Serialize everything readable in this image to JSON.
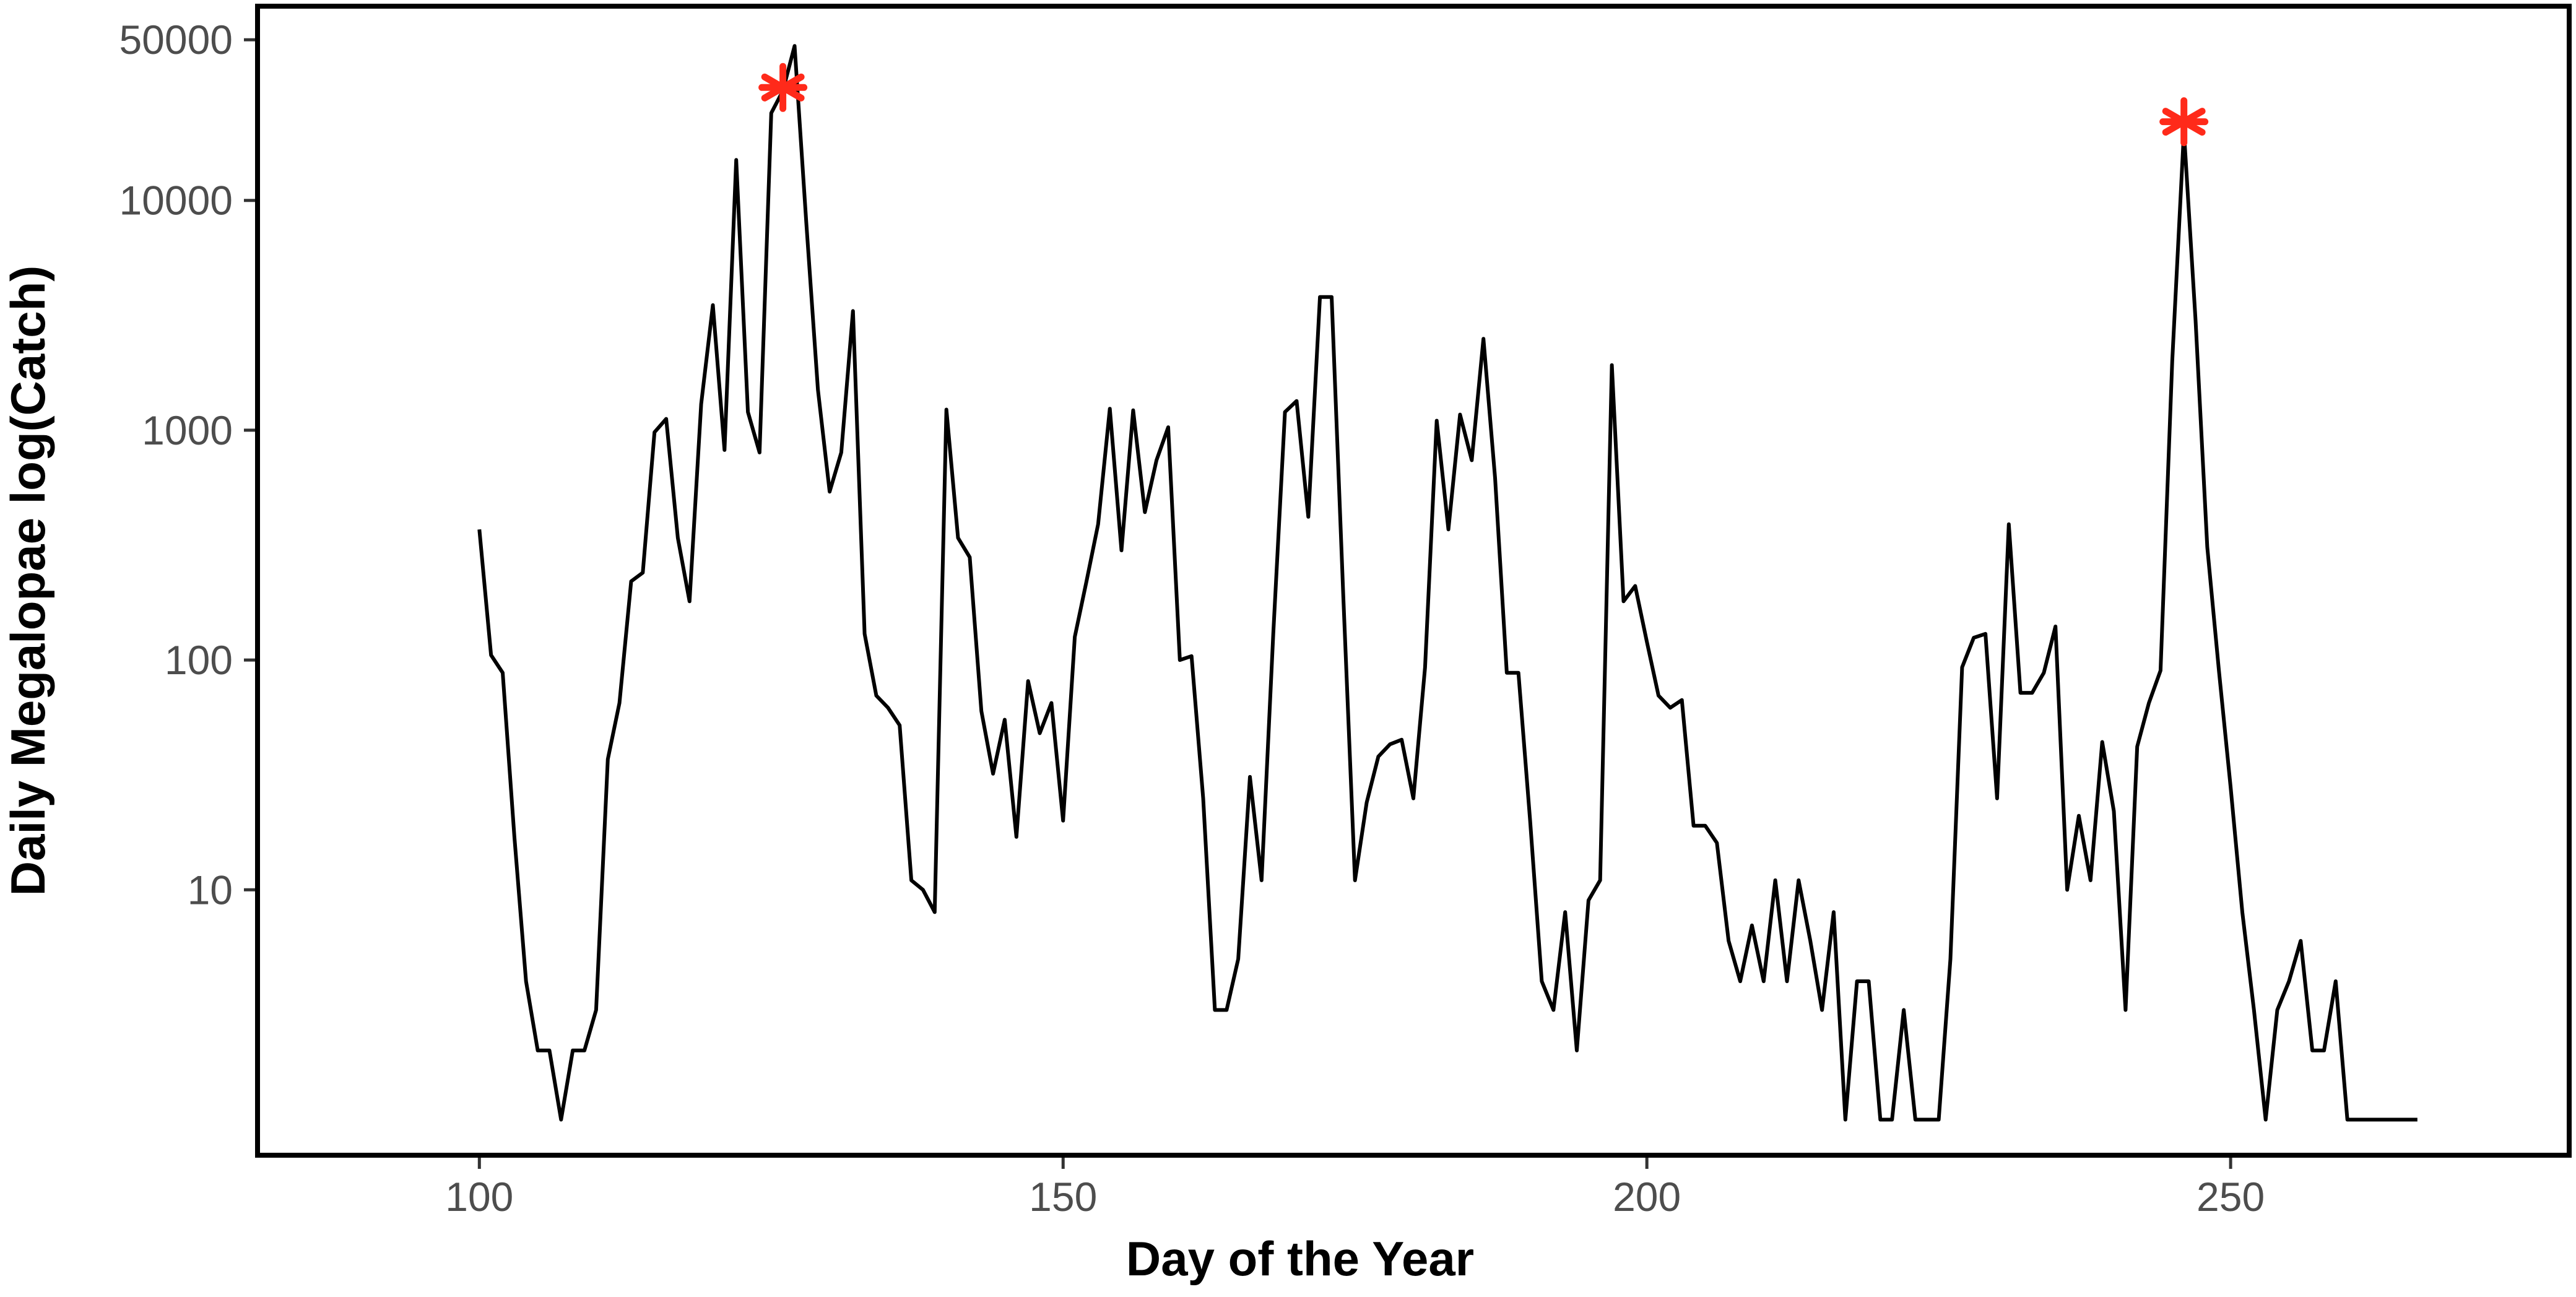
{
  "chart_data": {
    "type": "line",
    "title": "",
    "xlabel": "Day of the Year",
    "ylabel": "Daily Megalopae log(Catch)",
    "xlim": [
      81,
      279
    ],
    "ylim": [
      0.7,
      70000
    ],
    "y_scale": "log",
    "grid": false,
    "legend": "none",
    "x_ticks": [
      100,
      150,
      200,
      250
    ],
    "x_tick_labels": [
      "100",
      "150",
      "200",
      "250"
    ],
    "y_ticks": [
      10,
      100,
      1000,
      10000,
      50000
    ],
    "y_tick_labels": [
      "10",
      "100",
      "1000",
      "10000",
      "50000"
    ],
    "series": [
      {
        "color": "#000000",
        "x": [
          100,
          101,
          102,
          103,
          104,
          105,
          106,
          107,
          108,
          109,
          110,
          111,
          112,
          113,
          114,
          115,
          116,
          117,
          118,
          119,
          120,
          121,
          122,
          123,
          124,
          125,
          126,
          127,
          128,
          129,
          130,
          131,
          132,
          133,
          134,
          135,
          136,
          137,
          138,
          139,
          140,
          141,
          142,
          143,
          144,
          145,
          146,
          147,
          148,
          149,
          150,
          151,
          152,
          153,
          154,
          155,
          156,
          157,
          158,
          159,
          160,
          161,
          162,
          163,
          164,
          165,
          166,
          167,
          168,
          169,
          170,
          171,
          172,
          173,
          174,
          175,
          176,
          177,
          178,
          179,
          180,
          181,
          182,
          183,
          184,
          185,
          186,
          187,
          188,
          189,
          190,
          191,
          192,
          193,
          194,
          195,
          196,
          197,
          198,
          199,
          200,
          201,
          202,
          203,
          204,
          205,
          206,
          207,
          208,
          209,
          210,
          211,
          212,
          213,
          214,
          215,
          216,
          217,
          218,
          219,
          220,
          221,
          222,
          223,
          224,
          225,
          226,
          227,
          228,
          229,
          230,
          231,
          232,
          233,
          234,
          235,
          236,
          237,
          238,
          239,
          240,
          241,
          242,
          243,
          244,
          245,
          246,
          247,
          248,
          249,
          250,
          251,
          252,
          253,
          254,
          255,
          256,
          257,
          258,
          259,
          260,
          261,
          262,
          263,
          264,
          265,
          266
        ],
        "y": [
          370,
          105,
          88,
          17,
          4,
          2,
          2,
          1,
          2,
          2,
          3,
          37,
          65,
          220,
          240,
          980,
          1120,
          340,
          180,
          1300,
          3500,
          820,
          15000,
          1200,
          800,
          24000,
          30000,
          47000,
          8000,
          1500,
          540,
          800,
          3300,
          130,
          70,
          62,
          52,
          11,
          10,
          8,
          1230,
          340,
          280,
          60,
          32,
          55,
          17,
          81,
          48,
          65,
          20,
          126,
          220,
          390,
          1240,
          300,
          1220,
          440,
          740,
          1030,
          100,
          104,
          25,
          3,
          3,
          5,
          31,
          11,
          130,
          1200,
          1340,
          420,
          3800,
          3800,
          190,
          11,
          24,
          38,
          43,
          45,
          25,
          93,
          1100,
          370,
          1170,
          740,
          2500,
          620,
          88,
          88,
          20,
          4,
          3,
          8,
          2,
          9,
          11,
          1920,
          180,
          210,
          120,
          70,
          62,
          67,
          19,
          19,
          16,
          6,
          4,
          7,
          4,
          11,
          4,
          11,
          6,
          3,
          8,
          1,
          4,
          4,
          1,
          1,
          3,
          1,
          1,
          1,
          5,
          93,
          125,
          130,
          25,
          390,
          72,
          72,
          88,
          140,
          10,
          21,
          11,
          44,
          22,
          3,
          42,
          65,
          90,
          2000,
          20000,
          3000,
          310,
          90,
          28,
          8,
          3,
          1,
          3,
          4,
          6,
          2,
          2,
          4,
          1,
          1,
          1,
          1,
          1,
          1,
          1
        ]
      }
    ],
    "highlight_markers": {
      "color": "#ff2a1a",
      "symbol": "asterisk",
      "x": [
        126,
        246
      ],
      "y": [
        31000,
        22000
      ]
    }
  }
}
